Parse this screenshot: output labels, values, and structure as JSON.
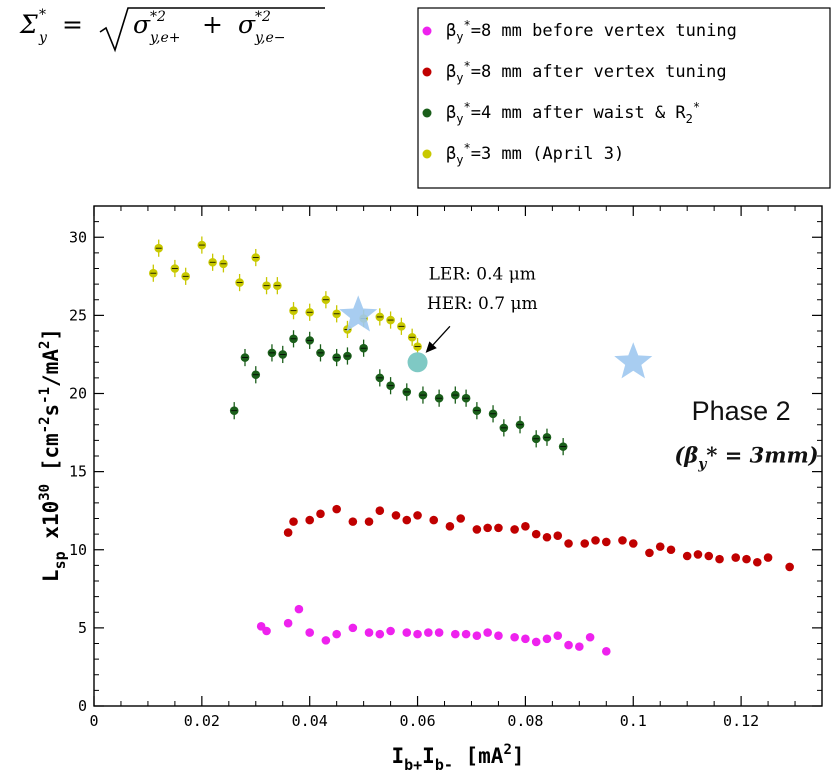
{
  "formula": {
    "lhs": "Σ",
    "lhs_sup": "*",
    "lhs_sub": "y",
    "equals": "=",
    "sigma1": "σ",
    "sigma1_sup": "*2",
    "sigma1_sub": "y,e+",
    "plus": "+",
    "sigma2": "σ",
    "sigma2_sup": "*2",
    "sigma2_sub": "y,e−"
  },
  "chart_data": {
    "type": "scatter",
    "xlabel": {
      "main": "I",
      "sub1": "b+",
      "mid": "I",
      "sub2": "b-",
      "unit": " [mA",
      "unit_sup": "2",
      "unit_end": "]"
    },
    "ylabel": {
      "main": "L",
      "sub": "sp",
      "mid": " x10",
      "sup": "30",
      "unit1": " [cm",
      "sup2": "-2",
      "unit2": "s",
      "sup3": "-1",
      "unit3": "/mA",
      "sup4": "2",
      "unit4": "]"
    },
    "xlim": [
      0,
      0.135
    ],
    "ylim": [
      0,
      32
    ],
    "xticks": [
      {
        "v": 0,
        "label": "0"
      },
      {
        "v": 0.02,
        "label": "0.02"
      },
      {
        "v": 0.04,
        "label": "0.04"
      },
      {
        "v": 0.06,
        "label": "0.06"
      },
      {
        "v": 0.08,
        "label": "0.08"
      },
      {
        "v": 0.1,
        "label": "0.1"
      },
      {
        "v": 0.12,
        "label": "0.12"
      }
    ],
    "yticks": [
      {
        "v": 0,
        "label": "0"
      },
      {
        "v": 5,
        "label": "5"
      },
      {
        "v": 10,
        "label": "10"
      },
      {
        "v": 15,
        "label": "15"
      },
      {
        "v": 20,
        "label": "20"
      },
      {
        "v": 25,
        "label": "25"
      },
      {
        "v": 30,
        "label": "30"
      }
    ],
    "legend_position": "top-right",
    "series": [
      {
        "id": "beta8-before",
        "name": "βy*=8 mm before vertex tuning",
        "legend": {
          "pre": "β",
          "sub": "y",
          "sup": "*",
          "post": "=8 mm before vertex tuning"
        },
        "color": "#ee22ee",
        "errorbars": false,
        "points": [
          [
            0.031,
            5.1
          ],
          [
            0.032,
            4.8
          ],
          [
            0.036,
            5.3
          ],
          [
            0.038,
            6.2
          ],
          [
            0.04,
            4.7
          ],
          [
            0.043,
            4.2
          ],
          [
            0.045,
            4.6
          ],
          [
            0.048,
            5.0
          ],
          [
            0.051,
            4.7
          ],
          [
            0.053,
            4.6
          ],
          [
            0.055,
            4.8
          ],
          [
            0.058,
            4.7
          ],
          [
            0.06,
            4.6
          ],
          [
            0.062,
            4.7
          ],
          [
            0.064,
            4.7
          ],
          [
            0.067,
            4.6
          ],
          [
            0.069,
            4.6
          ],
          [
            0.071,
            4.5
          ],
          [
            0.073,
            4.7
          ],
          [
            0.075,
            4.5
          ],
          [
            0.078,
            4.4
          ],
          [
            0.08,
            4.3
          ],
          [
            0.082,
            4.1
          ],
          [
            0.084,
            4.3
          ],
          [
            0.086,
            4.5
          ],
          [
            0.088,
            3.9
          ],
          [
            0.09,
            3.8
          ],
          [
            0.092,
            4.4
          ],
          [
            0.095,
            3.5
          ]
        ]
      },
      {
        "id": "beta8-after",
        "name": "βy*=8 mm after vertex tuning",
        "legend": {
          "pre": "β",
          "sub": "y",
          "sup": "*",
          "post": "=8 mm after vertex tuning"
        },
        "color": "#c00000",
        "errorbars": false,
        "points": [
          [
            0.036,
            11.1
          ],
          [
            0.037,
            11.8
          ],
          [
            0.04,
            11.9
          ],
          [
            0.042,
            12.3
          ],
          [
            0.045,
            12.6
          ],
          [
            0.048,
            11.8
          ],
          [
            0.051,
            11.8
          ],
          [
            0.053,
            12.5
          ],
          [
            0.056,
            12.2
          ],
          [
            0.058,
            11.9
          ],
          [
            0.06,
            12.2
          ],
          [
            0.063,
            11.9
          ],
          [
            0.066,
            11.5
          ],
          [
            0.068,
            12.0
          ],
          [
            0.071,
            11.3
          ],
          [
            0.073,
            11.4
          ],
          [
            0.075,
            11.4
          ],
          [
            0.078,
            11.3
          ],
          [
            0.08,
            11.5
          ],
          [
            0.082,
            11.0
          ],
          [
            0.084,
            10.8
          ],
          [
            0.086,
            10.9
          ],
          [
            0.088,
            10.4
          ],
          [
            0.091,
            10.4
          ],
          [
            0.093,
            10.6
          ],
          [
            0.095,
            10.5
          ],
          [
            0.098,
            10.6
          ],
          [
            0.1,
            10.4
          ],
          [
            0.103,
            9.8
          ],
          [
            0.105,
            10.2
          ],
          [
            0.107,
            10.0
          ],
          [
            0.11,
            9.6
          ],
          [
            0.112,
            9.7
          ],
          [
            0.114,
            9.6
          ],
          [
            0.116,
            9.4
          ],
          [
            0.119,
            9.5
          ],
          [
            0.121,
            9.4
          ],
          [
            0.123,
            9.2
          ],
          [
            0.125,
            9.5
          ],
          [
            0.129,
            8.9
          ]
        ]
      },
      {
        "id": "beta4",
        "name": "βy*=4 mm after waist & R2*",
        "legend": {
          "pre": "β",
          "sub": "y",
          "sup": "*",
          "post": "=4 mm after waist & R",
          "sub2": "2",
          "sup2": "*"
        },
        "color": "#1a5e1a",
        "errorbars": true,
        "points": [
          [
            0.026,
            18.9
          ],
          [
            0.028,
            22.3
          ],
          [
            0.03,
            21.2
          ],
          [
            0.033,
            22.6
          ],
          [
            0.035,
            22.5
          ],
          [
            0.037,
            23.5
          ],
          [
            0.04,
            23.4
          ],
          [
            0.042,
            22.6
          ],
          [
            0.045,
            22.3
          ],
          [
            0.047,
            22.4
          ],
          [
            0.05,
            22.9
          ],
          [
            0.053,
            21.0
          ],
          [
            0.055,
            20.5
          ],
          [
            0.058,
            20.1
          ],
          [
            0.061,
            19.9
          ],
          [
            0.064,
            19.7
          ],
          [
            0.067,
            19.9
          ],
          [
            0.069,
            19.7
          ],
          [
            0.071,
            18.9
          ],
          [
            0.074,
            18.7
          ],
          [
            0.076,
            17.8
          ],
          [
            0.079,
            18.0
          ],
          [
            0.082,
            17.1
          ],
          [
            0.084,
            17.2
          ],
          [
            0.087,
            16.6
          ]
        ]
      },
      {
        "id": "beta3",
        "name": "βy*=3 mm (April 3)",
        "legend": {
          "pre": "β",
          "sub": "y",
          "sup": "*",
          "post": "=3 mm (April 3)"
        },
        "color": "#c8c800",
        "errorbars": true,
        "points": [
          [
            0.011,
            27.7
          ],
          [
            0.012,
            29.3
          ],
          [
            0.015,
            28.0
          ],
          [
            0.017,
            27.5
          ],
          [
            0.02,
            29.5
          ],
          [
            0.022,
            28.4
          ],
          [
            0.024,
            28.3
          ],
          [
            0.027,
            27.1
          ],
          [
            0.03,
            28.7
          ],
          [
            0.032,
            26.9
          ],
          [
            0.034,
            26.9
          ],
          [
            0.037,
            25.3
          ],
          [
            0.04,
            25.2
          ],
          [
            0.043,
            26.0
          ],
          [
            0.045,
            25.1
          ],
          [
            0.047,
            24.1
          ],
          [
            0.05,
            24.8
          ],
          [
            0.053,
            24.9
          ],
          [
            0.055,
            24.7
          ],
          [
            0.057,
            24.3
          ],
          [
            0.059,
            23.6
          ],
          [
            0.06,
            23.0
          ]
        ]
      }
    ],
    "special_points": [
      {
        "id": "star-phase2-a",
        "x": 0.049,
        "y": 25.0,
        "shape": "star",
        "color": "#9ec8ef"
      },
      {
        "id": "star-phase2-b",
        "x": 0.1,
        "y": 22.0,
        "shape": "star",
        "color": "#9ec8ef"
      },
      {
        "id": "circle-ler-her",
        "x": 0.06,
        "y": 22.0,
        "shape": "circle",
        "color": "#7fc9c4"
      }
    ],
    "annotations": {
      "ler": {
        "label": "LER: 0.4 μm",
        "x": 0.072,
        "y": 27.3
      },
      "her": {
        "label": "HER: 0.7 μm",
        "x": 0.072,
        "y": 25.4
      },
      "arrow": {
        "from": [
          0.066,
          24.3
        ],
        "to": [
          0.0615,
          22.6
        ]
      },
      "phase2": {
        "label": "Phase 2",
        "x": 0.12,
        "y": 18.3
      },
      "phase2_beta": {
        "pre": "(β",
        "sub": "y",
        "post": "* = 3mm)",
        "x": 0.121,
        "y": 15.6
      }
    }
  }
}
